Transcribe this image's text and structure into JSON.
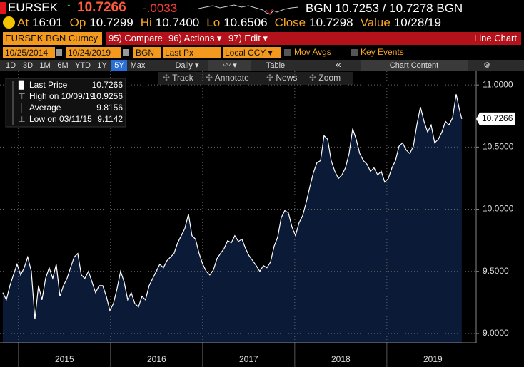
{
  "header": {
    "ticker": "EURSEK",
    "arrow": "↑",
    "price": "10.7266",
    "change": "-.0033",
    "quote": "BGN 10.7253 / 10.7278 BGN"
  },
  "stats": [
    {
      "label": "At",
      "value": "16:01"
    },
    {
      "label": "Op",
      "value": "10.7299"
    },
    {
      "label": "Hi",
      "value": "10.7400"
    },
    {
      "label": "Lo",
      "value": "10.6506"
    },
    {
      "label": "Close",
      "value": "10.7298"
    },
    {
      "label": "Value",
      "value": "10/28/19"
    }
  ],
  "toolbar": {
    "security": "EURSEK BGN Curncy",
    "buttons": [
      "95) Compare",
      "96) Actions ▾",
      "97) Edit ▾"
    ],
    "view": "Line Chart"
  },
  "settings": {
    "start": "10/25/2014",
    "end": "10/24/2019",
    "source": "BGN",
    "field": "Last Px",
    "currency": "Local CCY ▾",
    "checks": [
      "Mov Avgs",
      "Key Events"
    ]
  },
  "periods": [
    "1D",
    "3D",
    "1M",
    "6M",
    "YTD",
    "1Y",
    "5Y",
    "Max"
  ],
  "active_period": "5Y",
  "frequency": "Daily ▾",
  "table": "Table",
  "collapse": "«",
  "chart_content": "Chart Content",
  "tools": [
    "Track",
    "Annotate",
    "News",
    "Zoom"
  ],
  "chart_data": {
    "type": "line",
    "legend": [
      {
        "label": "Last Price",
        "value": 10.7266
      },
      {
        "label": "High on 10/09/19",
        "value": 10.9256
      },
      {
        "label": "Average",
        "value": 9.8156
      },
      {
        "label": "Low on 03/11/15",
        "value": 9.1142
      }
    ],
    "x": [
      2014.83,
      2014.869,
      2014.908,
      2014.946,
      2014.985,
      2015.024,
      2015.063,
      2015.101,
      2015.14,
      2015.179,
      2015.218,
      2015.256,
      2015.295,
      2015.334,
      2015.373,
      2015.411,
      2015.45,
      2015.489,
      2015.528,
      2015.566,
      2015.605,
      2015.644,
      2015.683,
      2015.721,
      2015.76,
      2015.799,
      2015.838,
      2015.876,
      2015.915,
      2015.954,
      2015.993,
      2016.032,
      2016.07,
      2016.109,
      2016.148,
      2016.187,
      2016.225,
      2016.264,
      2016.303,
      2016.342,
      2016.38,
      2016.419,
      2016.458,
      2016.497,
      2016.535,
      2016.574,
      2016.613,
      2016.652,
      2016.69,
      2016.729,
      2016.768,
      2016.807,
      2016.846,
      2016.884,
      2016.923,
      2016.962,
      2017.001,
      2017.039,
      2017.078,
      2017.117,
      2017.156,
      2017.194,
      2017.233,
      2017.272,
      2017.311,
      2017.349,
      2017.388,
      2017.427,
      2017.466,
      2017.504,
      2017.543,
      2017.582,
      2017.621,
      2017.66,
      2017.698,
      2017.737,
      2017.776,
      2017.815,
      2017.853,
      2017.892,
      2017.931,
      2017.97,
      2018.008,
      2018.047,
      2018.086,
      2018.125,
      2018.163,
      2018.202,
      2018.241,
      2018.28,
      2018.318,
      2018.357,
      2018.396,
      2018.435,
      2018.474,
      2018.512,
      2018.551,
      2018.59,
      2018.629,
      2018.667,
      2018.706,
      2018.745,
      2018.784,
      2018.822,
      2018.861,
      2018.9,
      2018.939,
      2018.977,
      2019.016,
      2019.055,
      2019.094,
      2019.132,
      2019.171,
      2019.21,
      2019.249,
      2019.288,
      2019.326,
      2019.365,
      2019.404,
      2019.443,
      2019.481,
      2019.52,
      2019.559,
      2019.598,
      2019.636,
      2019.675,
      2019.714,
      2019.753,
      2019.791,
      2019.814
    ],
    "series": [
      {
        "name": "Last Price",
        "color": "#ffffff",
        "fill": "#0b1a36",
        "values": [
          9.328,
          9.27,
          9.385,
          9.471,
          9.557,
          9.471,
          9.529,
          9.615,
          9.5,
          9.1142,
          9.385,
          9.27,
          9.443,
          9.529,
          9.443,
          9.557,
          9.299,
          9.385,
          9.443,
          9.529,
          9.615,
          9.644,
          9.471,
          9.443,
          9.5,
          9.414,
          9.328,
          9.385,
          9.385,
          9.299,
          9.184,
          9.241,
          9.356,
          9.5,
          9.414,
          9.27,
          9.328,
          9.241,
          9.213,
          9.299,
          9.27,
          9.385,
          9.443,
          9.5,
          9.557,
          9.529,
          9.586,
          9.615,
          9.644,
          9.73,
          9.787,
          9.845,
          9.96,
          9.787,
          9.759,
          9.644,
          9.557,
          9.5,
          9.471,
          9.511,
          9.603,
          9.644,
          9.684,
          9.747,
          9.73,
          9.787,
          9.741,
          9.759,
          9.684,
          9.626,
          9.586,
          9.546,
          9.5,
          9.546,
          9.529,
          9.575,
          9.701,
          9.776,
          9.931,
          9.989,
          9.971,
          9.856,
          9.787,
          9.891,
          9.948,
          10.057,
          10.178,
          10.293,
          10.374,
          10.391,
          10.592,
          10.563,
          10.391,
          10.305,
          10.247,
          10.276,
          10.333,
          10.448,
          10.649,
          10.563,
          10.448,
          10.391,
          10.362,
          10.305,
          10.333,
          10.276,
          10.305,
          10.218,
          10.247,
          10.333,
          10.391,
          10.506,
          10.534,
          10.477,
          10.448,
          10.506,
          10.678,
          10.822,
          10.707,
          10.621,
          10.678,
          10.534,
          10.563,
          10.621,
          10.707,
          10.678,
          10.736,
          10.9256,
          10.793,
          10.7266
        ]
      }
    ],
    "xlim": [
      2014.8,
      2019.97
    ],
    "xticks": [
      2015,
      2016,
      2017,
      2018,
      2019
    ],
    "ylim": [
      8.925,
      11.11
    ],
    "yticks": [
      {
        "value": 9,
        "label": "9.0000"
      },
      {
        "value": 9.5,
        "label": "9.5000"
      },
      {
        "value": 10,
        "label": "10.0000"
      },
      {
        "value": 10.5,
        "label": "10.5000"
      },
      {
        "value": 11,
        "label": "11.0000"
      }
    ],
    "grid": true
  }
}
